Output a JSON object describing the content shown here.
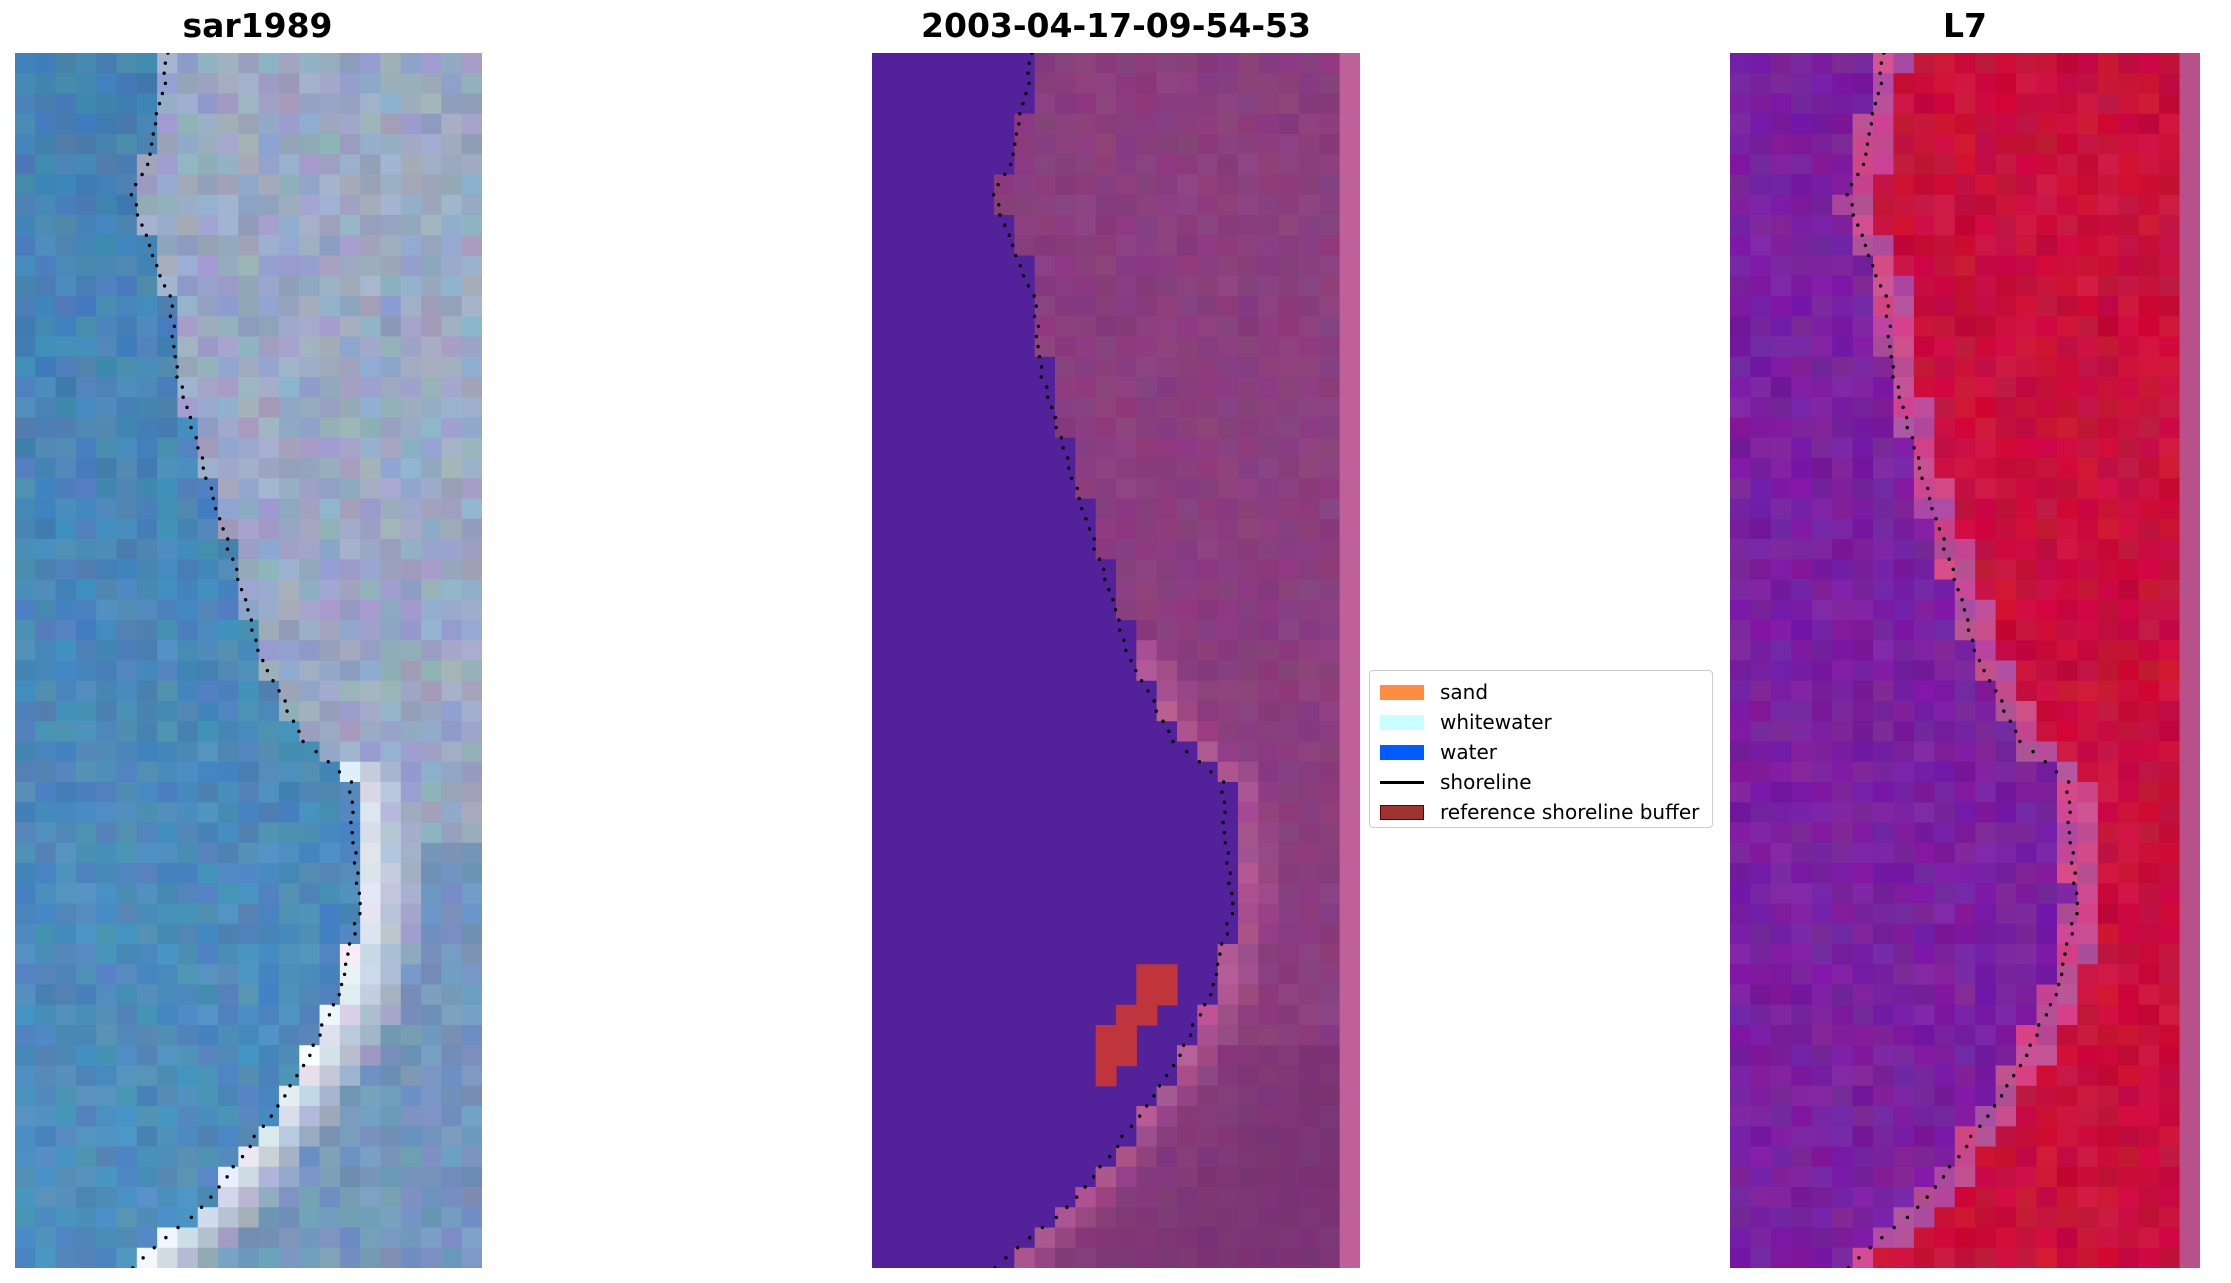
{
  "figure": {
    "panels": [
      {
        "title": "sar1989",
        "type": "true-color satellite image"
      },
      {
        "title": "2003-04-17-09-54-53",
        "type": "classified image"
      },
      {
        "title": "L7",
        "type": "index image"
      }
    ]
  },
  "legend": {
    "items": [
      {
        "label": "sand",
        "kind": "patch",
        "color": "#ff8c40"
      },
      {
        "label": "whitewater",
        "kind": "patch",
        "color": "#c8ffff"
      },
      {
        "label": "water",
        "kind": "patch",
        "color": "#005cff"
      },
      {
        "label": "shoreline",
        "kind": "line",
        "color": "#000000"
      },
      {
        "label": "reference shoreline buffer",
        "kind": "patch",
        "color": "#a03232"
      }
    ]
  },
  "colors": {
    "water_rgb": "#4682b4",
    "land_rgb": "#9aa8c4",
    "whitewater_rgb": "#f4f8ff",
    "class_water": "#53229a",
    "class_land": "#8a3e7e",
    "class_edge": "#c0609a",
    "class_buffer": "#c0343c",
    "index_water": "#7a20a0",
    "index_land": "#c8103c",
    "shoreline": "#000000"
  }
}
